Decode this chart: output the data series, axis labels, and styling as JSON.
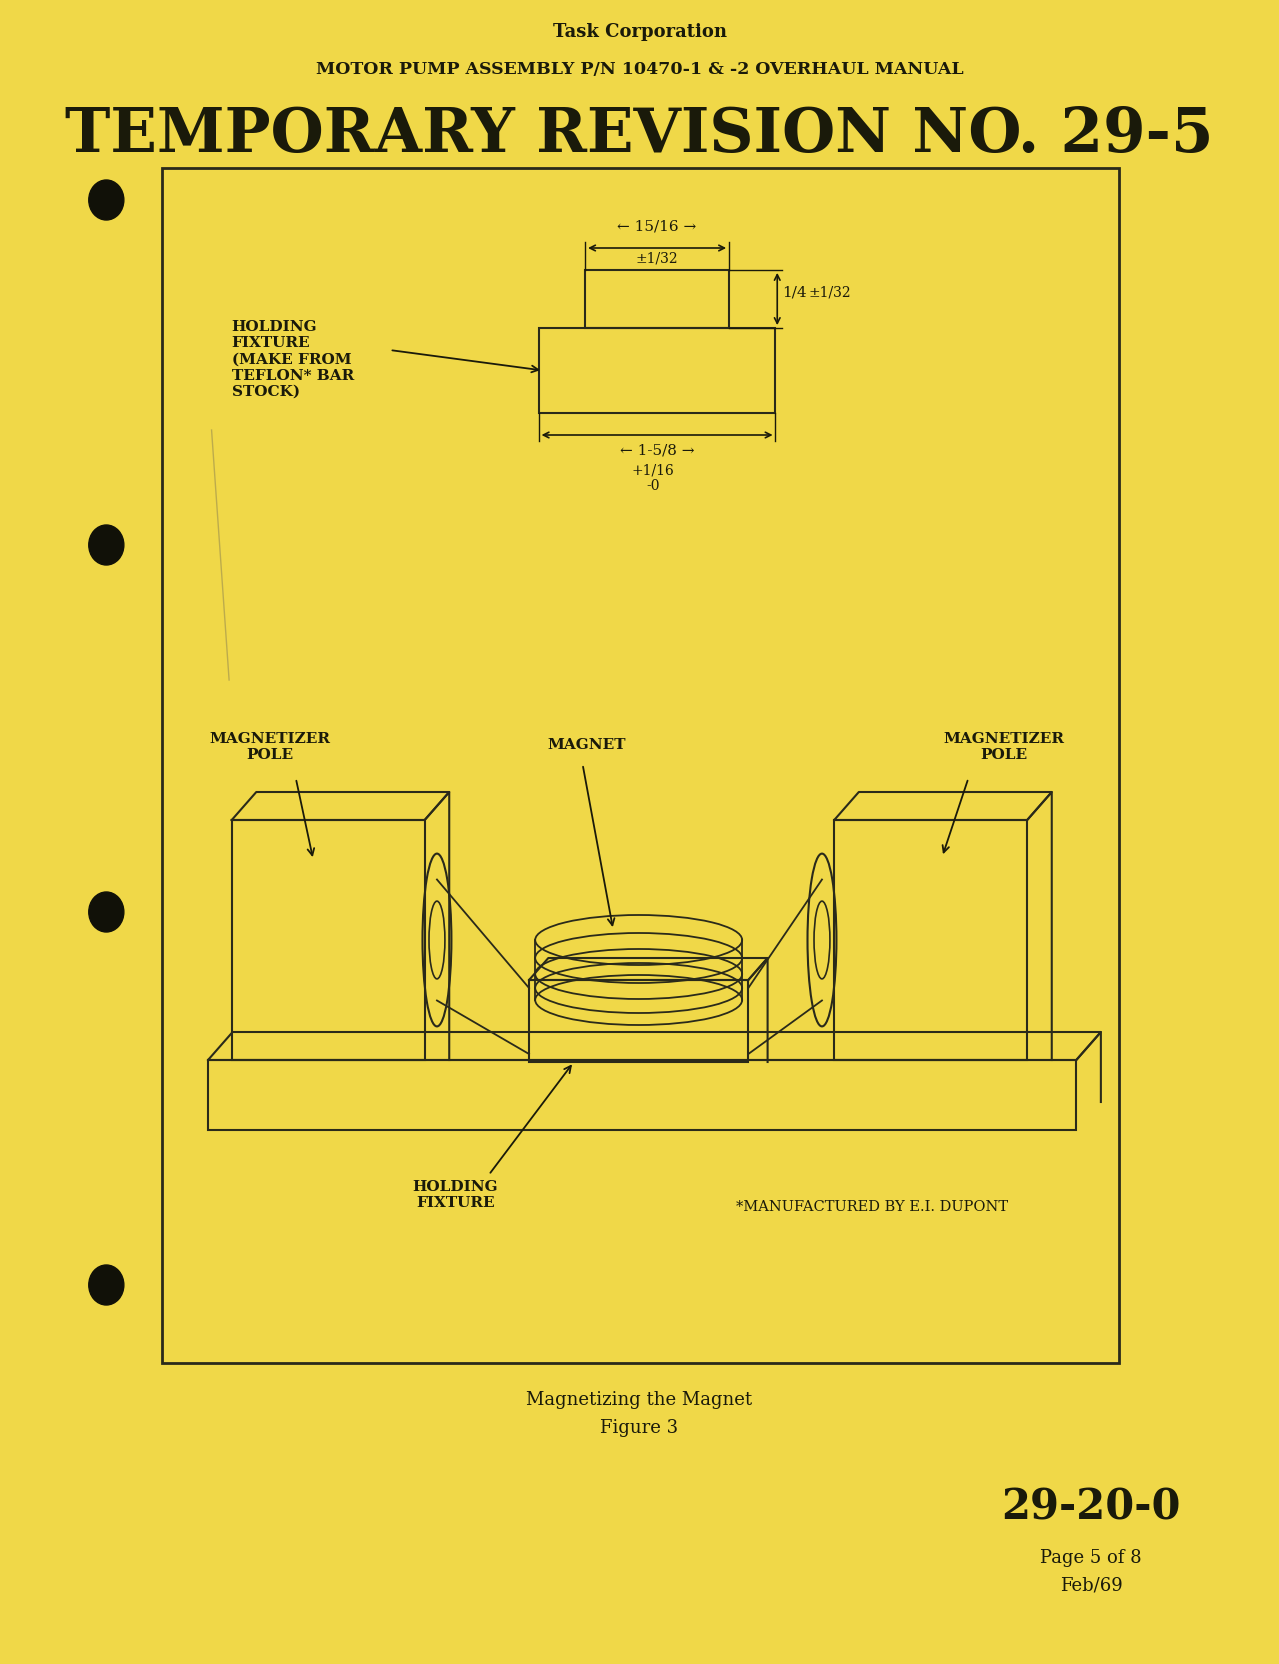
{
  "bg_color": "#f0d848",
  "border_color": "#2a2a1a",
  "text_color": "#1a1a0a",
  "header_company": "Task Corporation",
  "header_subtitle": "MOTOR PUMP ASSEMBLY P/N 10470-1 & -2 OVERHAUL MANUAL",
  "title": "TEMPORARY REVISION NO. 29-5",
  "label_holding_fixture": "HOLDING\nFIXTURE\n(MAKE FROM\nTEFLON* BAR\nSTOCK)",
  "label_magnetizer_left": "MAGNETIZER\nPOLE",
  "label_magnetizer_right": "MAGNETIZER\nPOLE",
  "label_magnet": "MAGNET",
  "label_holding_fixture2": "HOLDING\nFIXTURE",
  "label_dupont": "*MANUFACTURED BY E.I. DUPONT",
  "caption_line1": "Magnetizing the Magnet",
  "caption_line2": "Figure 3",
  "footer_code": "29-20-0",
  "footer_page": "Page 5 of 8",
  "footer_date": "Feb/69",
  "dim_width_top": "← 15/16 →",
  "dim_width_tol": "±1/32",
  "dim_height": "1/4",
  "dim_height_tol": "±1/32",
  "dim_length": "← 1-5/8 →",
  "dim_length_tol": "+1/16\n-0"
}
